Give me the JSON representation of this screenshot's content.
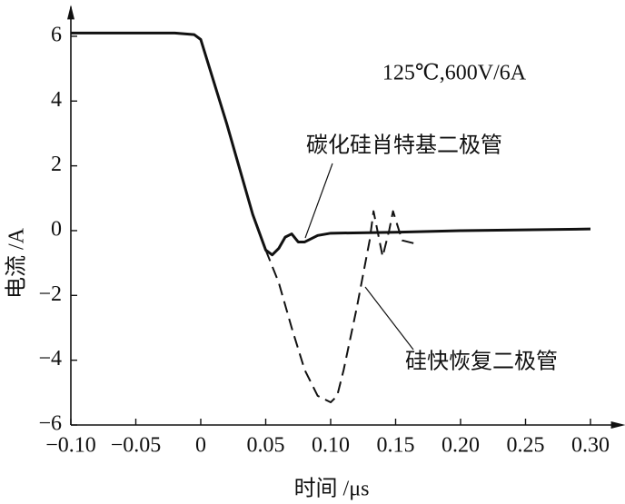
{
  "chart_data": {
    "type": "line",
    "annotation": "125℃,600V/6A",
    "xlabel": "时间 /μs",
    "ylabel": "电流 /A",
    "xlim": [
      -0.1,
      0.32
    ],
    "ylim": [
      -6,
      6.8
    ],
    "xticks": [
      {
        "value": -0.1,
        "label": "−0.10"
      },
      {
        "value": -0.05,
        "label": "−0.05"
      },
      0,
      0.05,
      {
        "value": 0.1,
        "label": "0.10"
      },
      0.15,
      {
        "value": 0.2,
        "label": "0.20"
      },
      0.25,
      {
        "value": 0.3,
        "label": "0.30"
      }
    ],
    "yticks": [
      {
        "value": -6,
        "label": "−6"
      },
      {
        "value": -4,
        "label": "−4"
      },
      {
        "value": -2,
        "label": "−2"
      },
      0,
      2,
      4,
      6
    ],
    "series": [
      {
        "name": "碳化硅肖特基二极管",
        "color": "#111111",
        "dash": false,
        "x": [
          -0.1,
          -0.02,
          -0.005,
          0,
          0.02,
          0.04,
          0.05,
          0.055,
          0.06,
          0.065,
          0.07,
          0.075,
          0.08,
          0.09,
          0.1,
          0.15,
          0.2,
          0.3
        ],
        "values": [
          6.1,
          6.1,
          6.05,
          5.9,
          3.3,
          0.5,
          -0.6,
          -0.75,
          -0.55,
          -0.2,
          -0.1,
          -0.35,
          -0.35,
          -0.15,
          -0.08,
          -0.05,
          0,
          0.05
        ]
      },
      {
        "name": "硅快恢复二极管",
        "color": "#111111",
        "dash": true,
        "x": [
          0.05,
          0.06,
          0.07,
          0.08,
          0.09,
          0.1,
          0.105,
          0.11,
          0.12,
          0.13,
          0.133,
          0.14,
          0.145,
          0.148,
          0.155,
          0.165
        ],
        "values": [
          -0.6,
          -1.6,
          -3.0,
          -4.3,
          -5.1,
          -5.3,
          -5.1,
          -4.3,
          -2.4,
          -0.3,
          0.6,
          -0.8,
          0.0,
          0.6,
          -0.3,
          -0.4
        ]
      }
    ]
  }
}
